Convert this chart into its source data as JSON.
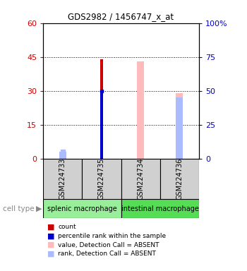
{
  "title": "GDS2982 / 1456747_x_at",
  "samples": [
    "GSM224733",
    "GSM224735",
    "GSM224734",
    "GSM224736"
  ],
  "groups": [
    {
      "name": "splenic macrophage",
      "color": "#99ee99"
    },
    {
      "name": "intestinal macrophage",
      "color": "#55dd55"
    }
  ],
  "count_values": [
    0,
    44,
    0,
    0
  ],
  "count_color": "#cc0000",
  "rank_values": [
    0,
    30,
    0,
    0
  ],
  "rank_color": "#0000cc",
  "absent_value_values": [
    0,
    0,
    43,
    29
  ],
  "absent_value_color": "#ffbbbb",
  "absent_rank_values": [
    3,
    0,
    0,
    27
  ],
  "absent_rank_color": "#aabbff",
  "ylim_left": [
    0,
    60
  ],
  "ylim_right": [
    0,
    100
  ],
  "yticks_left": [
    0,
    15,
    30,
    45,
    60
  ],
  "ytick_labels_left": [
    "0",
    "15",
    "30",
    "45",
    "60"
  ],
  "yticks_right": [
    0,
    25,
    50,
    75,
    100
  ],
  "ytick_labels_right": [
    "0",
    "25",
    "50",
    "75",
    "100%"
  ],
  "left_axis_color": "#cc0000",
  "right_axis_color": "#0000cc",
  "cell_type_label": "cell type",
  "legend_items": [
    {
      "label": "count",
      "color": "#cc0000"
    },
    {
      "label": "percentile rank within the sample",
      "color": "#0000cc"
    },
    {
      "label": "value, Detection Call = ABSENT",
      "color": "#ffbbbb"
    },
    {
      "label": "rank, Detection Call = ABSENT",
      "color": "#aabbff"
    }
  ]
}
